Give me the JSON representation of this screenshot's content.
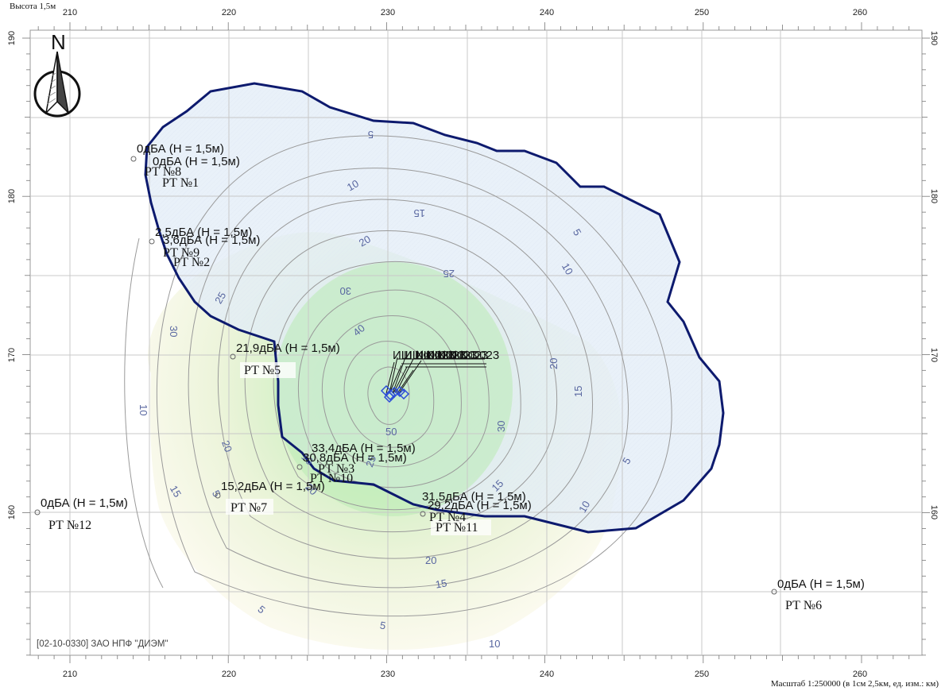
{
  "header_text": "Высота 1,5м",
  "north_label": "N",
  "credit": "[02-10-0330] ЗАО НПФ \"ДИЭМ\"",
  "scale_text": "Масштаб 1:250000 (в 1см 2,5км, ед. изм.: км)",
  "axes": {
    "x_ticks": [
      "210",
      "220",
      "230",
      "240",
      "250",
      "260"
    ],
    "y_ticks": [
      "190",
      "180",
      "170",
      "160"
    ]
  },
  "isoline_labels": [
    "5",
    "10",
    "15",
    "20",
    "25",
    "30",
    "40",
    "50",
    "30",
    "20",
    "15",
    "10",
    "5",
    "5",
    "10",
    "15",
    "20",
    "25",
    "30",
    "20",
    "15",
    "10",
    "5",
    "5",
    "10",
    "15",
    "20",
    "25",
    "10",
    "5"
  ],
  "points": [
    {
      "value": "0дБА (Н = 1,5м)",
      "name": "РТ №8"
    },
    {
      "value": "0дБА (Н = 1,5м)",
      "name": "РТ №1"
    },
    {
      "value": "2,5дБА (Н = 1,5м)",
      "name": "РТ №9"
    },
    {
      "value": "3,6дБА (Н = 1,5м)",
      "name": "РТ №2"
    },
    {
      "value": "21,9дБА (Н = 1,5м)",
      "name": "РТ №5"
    },
    {
      "value": "33,4дБА (Н = 1,5м)",
      "name": "РТ №3"
    },
    {
      "value": "30,8дБА (Н = 1,5м)",
      "name": "РТ №10"
    },
    {
      "value": "15,2дБА (Н = 1,5м)",
      "name": "РТ №7"
    },
    {
      "value": "31,5дБА (Н = 1,5м)",
      "name": "РТ №4"
    },
    {
      "value": "29,2дБА (Н = 1,5м)",
      "name": "РТ №11"
    },
    {
      "value": "0дБА (Н = 1,5м)",
      "name": "РТ №12"
    },
    {
      "value": "0дБА (Н = 1,5м)",
      "name": "РТ №6"
    }
  ],
  "sources_label": "ИШ №0023",
  "colors": {
    "boundary": "#0d1a6e",
    "grid": "#c8c8c8",
    "isoline": "#9a9a9a",
    "source": "#2b4bd8"
  }
}
